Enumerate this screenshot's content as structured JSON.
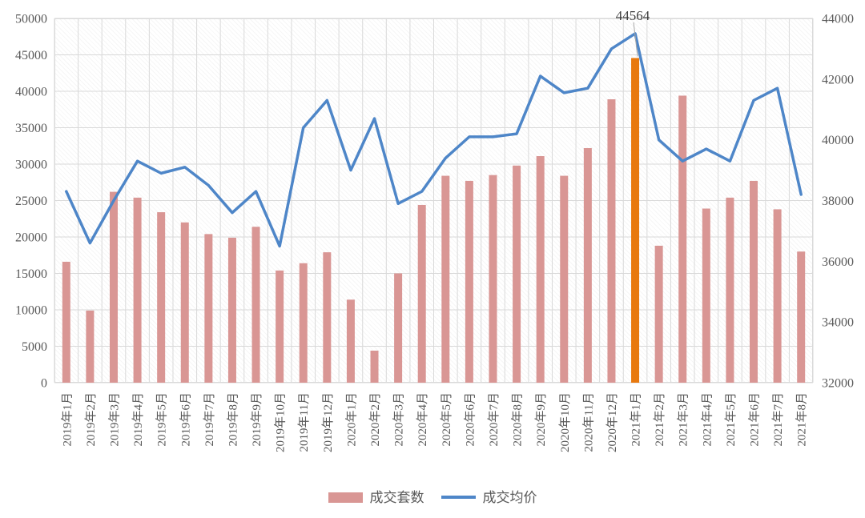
{
  "chart_data": {
    "type": "bar",
    "subtype": "combo-bar-line",
    "categories": [
      "2019年1月",
      "2019年2月",
      "2019年3月",
      "2019年4月",
      "2019年5月",
      "2019年6月",
      "2019年7月",
      "2019年8月",
      "2019年9月",
      "2019年10月",
      "2019年11月",
      "2019年12月",
      "2020年1月",
      "2020年2月",
      "2020年3月",
      "2020年4月",
      "2020年5月",
      "2020年6月",
      "2020年7月",
      "2020年8月",
      "2020年9月",
      "2020年10月",
      "2020年11月",
      "2020年12月",
      "2021年1月",
      "2021年2月",
      "2021年3月",
      "2021年4月",
      "2021年5月",
      "2021年6月",
      "2021年7月",
      "2021年8月"
    ],
    "series": [
      {
        "name": "成交套数",
        "type": "bar",
        "axis": "left",
        "color": "#D99694",
        "values": [
          16600,
          9900,
          26200,
          25400,
          23400,
          22000,
          20400,
          19900,
          21400,
          15400,
          16400,
          17900,
          11400,
          4400,
          15000,
          24400,
          28400,
          27700,
          28500,
          29800,
          31100,
          28400,
          32200,
          38900,
          44564,
          18800,
          39400,
          23900,
          25400,
          27700,
          23800,
          18000
        ]
      },
      {
        "name": "成交均价",
        "type": "line",
        "axis": "right",
        "color": "#4E86C8",
        "values": [
          38300,
          36600,
          38000,
          39300,
          38900,
          39100,
          38500,
          37600,
          38300,
          36500,
          40400,
          41300,
          39000,
          40700,
          37900,
          38300,
          39400,
          40100,
          40100,
          40200,
          42100,
          41550,
          41700,
          43000,
          43500,
          40000,
          39300,
          39700,
          39300,
          41300,
          41700,
          38200
        ]
      }
    ],
    "highlight": {
      "series": 0,
      "index": 24,
      "color": "#E8790E"
    },
    "annotation": {
      "text": "44564",
      "index": 24
    },
    "left_axis": {
      "min": 0,
      "max": 50000,
      "step": 5000,
      "tick_labels": [
        "0",
        "5000",
        "10000",
        "15000",
        "20000",
        "25000",
        "30000",
        "35000",
        "40000",
        "45000",
        "50000"
      ]
    },
    "right_axis": {
      "min": 32000,
      "max": 44000,
      "step": 2000,
      "tick_labels": [
        "32000",
        "34000",
        "36000",
        "38000",
        "40000",
        "42000",
        "44000"
      ]
    },
    "grid": true,
    "legend_position": "bottom",
    "title": "",
    "xlabel": "",
    "ylabel": ""
  },
  "legend": {
    "bar_label": "成交套数",
    "line_label": "成交均价"
  },
  "colors": {
    "bar": "#D99694",
    "bar_highlight": "#E8790E",
    "line": "#4E86C8",
    "grid": "#D9D9D9",
    "axis_text": "#595959",
    "annotation_text": "#3F3F3F",
    "leader_line": "#A6A6A6",
    "plot_border": "#D9D9D9"
  }
}
